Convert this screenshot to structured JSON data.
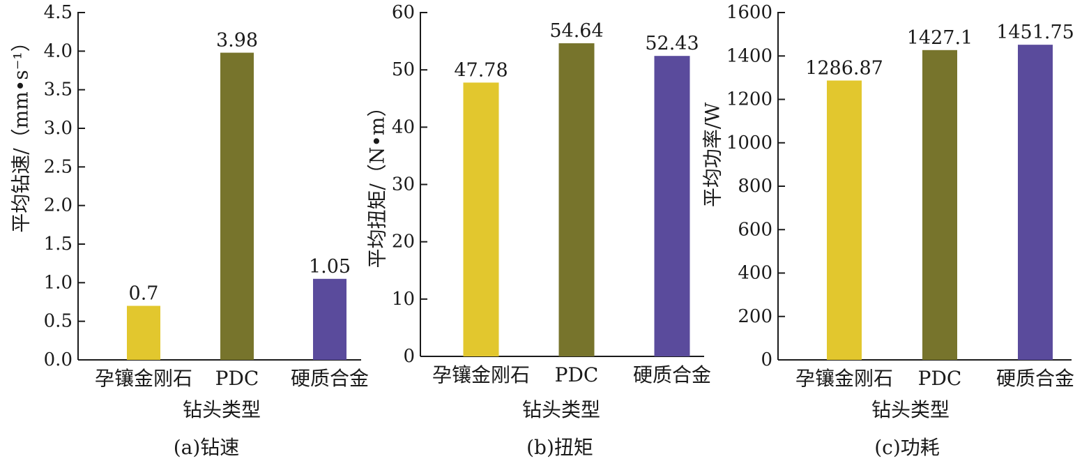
{
  "chart_data": [
    {
      "type": "bar",
      "caption": "(a)钻速",
      "categories": [
        "孕镶金刚石",
        "PDC",
        "硬质合金"
      ],
      "values": [
        0.7,
        3.98,
        1.05
      ],
      "value_labels": [
        "0.7",
        "3.98",
        "1.05"
      ],
      "xlabel": "钻头类型",
      "ylabel": "平均钻速/（mm•s⁻¹）",
      "ylim": [
        0,
        4.5
      ],
      "yticks": [
        "0.0",
        "0.5",
        "1.0",
        "1.5",
        "2.0",
        "2.5",
        "3.0",
        "3.5",
        "4.0",
        "4.5"
      ],
      "grid": false,
      "colors": [
        "#e2c72e",
        "#77742c",
        "#5a4b9c"
      ]
    },
    {
      "type": "bar",
      "caption": "(b)扭矩",
      "categories": [
        "孕镶金刚石",
        "PDC",
        "硬质合金"
      ],
      "values": [
        47.78,
        54.64,
        52.43
      ],
      "value_labels": [
        "47.78",
        "54.64",
        "52.43"
      ],
      "xlabel": "钻头类型",
      "ylabel": "平均扭矩/（N•m）",
      "ylim": [
        0,
        60
      ],
      "yticks": [
        "0",
        "10",
        "20",
        "30",
        "40",
        "50",
        "60"
      ],
      "grid": false,
      "colors": [
        "#e2c72e",
        "#77742c",
        "#5a4b9c"
      ]
    },
    {
      "type": "bar",
      "caption": "(c)功耗",
      "categories": [
        "孕镶金刚石",
        "PDC",
        "硬质合金"
      ],
      "values": [
        1286.87,
        1427.1,
        1451.75
      ],
      "value_labels": [
        "1286.87",
        "1427.1",
        "1451.75"
      ],
      "xlabel": "钻头类型",
      "ylabel": "平均功率/W",
      "ylim": [
        0,
        1600
      ],
      "yticks": [
        "0",
        "200",
        "400",
        "600",
        "800",
        "1000",
        "1200",
        "1400",
        "1600"
      ],
      "grid": false,
      "colors": [
        "#e2c72e",
        "#77742c",
        "#5a4b9c"
      ]
    }
  ]
}
